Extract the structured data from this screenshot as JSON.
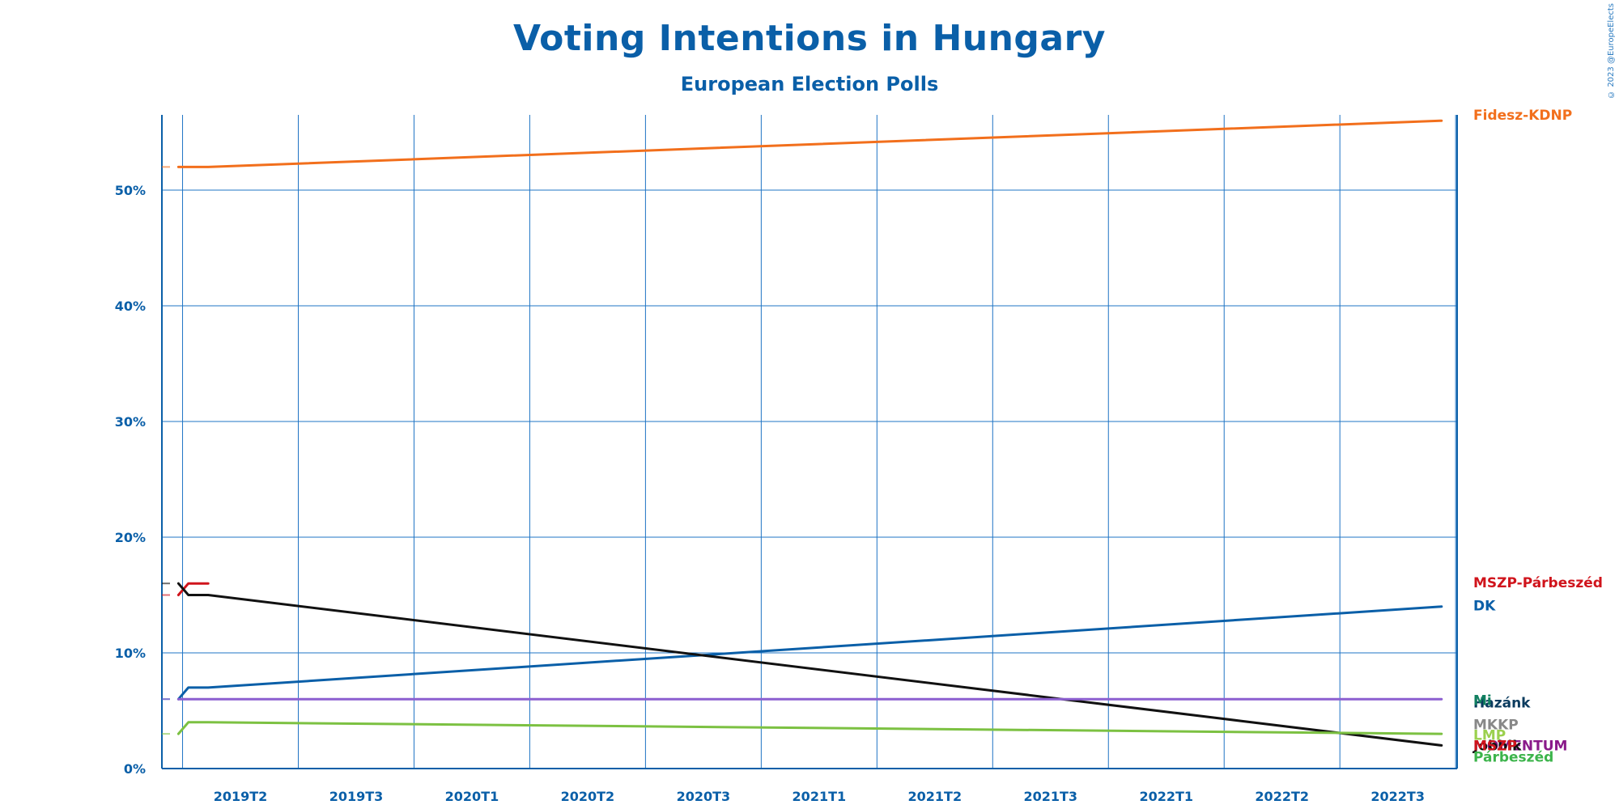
{
  "page": {
    "title": "Voting Intentions in Hungary",
    "subtitle": "European Election Polls",
    "copyright": "© 2023 @EuropeElects"
  },
  "chart_data": {
    "type": "line",
    "title": "Voting Intentions in Hungary",
    "subtitle": "European Election Polls",
    "xlabel": "",
    "ylabel": "",
    "x_categories": [
      "2019T2",
      "2019T3",
      "2020T1",
      "2020T2",
      "2020T3",
      "2021T1",
      "2021T2",
      "2021T3",
      "2022T1",
      "2022T2",
      "2022T3"
    ],
    "x_range": [
      2019.0,
      2022.917
    ],
    "yticks": [
      0,
      10,
      20,
      30,
      40,
      50
    ],
    "ytick_labels": [
      "0%",
      "10%",
      "20%",
      "30%",
      "40%",
      "50%"
    ],
    "ylim": [
      0,
      56.5
    ],
    "grid": true,
    "legend": "labels at right end of each line",
    "series": [
      {
        "name": "Fidesz-KDNP",
        "color": "#f26f1c",
        "points": [
          [
            2019.05,
            52
          ],
          [
            2019.14,
            52
          ],
          [
            2022.87,
            56
          ]
        ]
      },
      {
        "name": "MSZP-Párbeszéd",
        "color": "#d0141c",
        "points": [
          [
            2019.05,
            15
          ],
          [
            2019.08,
            16
          ],
          [
            2019.14,
            16
          ]
        ]
      },
      {
        "name": "DK",
        "color": "#0a5fa8",
        "points": [
          [
            2019.05,
            6
          ],
          [
            2019.08,
            7
          ],
          [
            2019.14,
            7
          ],
          [
            2022.87,
            14
          ]
        ]
      },
      {
        "name": "Jobbik",
        "color": "#111111",
        "points": [
          [
            2019.05,
            16
          ],
          [
            2019.08,
            15
          ],
          [
            2019.14,
            15
          ],
          [
            2022.87,
            2
          ]
        ]
      },
      {
        "name": "Mi Hazánk",
        "color": "#8c5fd0",
        "points": [
          [
            2019.05,
            6
          ],
          [
            2019.14,
            6
          ],
          [
            2022.87,
            6
          ]
        ]
      },
      {
        "name": "LMP",
        "color": "#7cc142",
        "points": [
          [
            2019.05,
            3
          ],
          [
            2019.08,
            4
          ],
          [
            2019.14,
            4
          ],
          [
            2022.87,
            3
          ]
        ]
      },
      {
        "name": "MKKP",
        "color": "#888888",
        "points": []
      },
      {
        "name": "Momentum",
        "color": "#8a1a8a",
        "points": []
      },
      {
        "name": "Párbeszéd",
        "color": "#3cb44b",
        "points": []
      }
    ],
    "end_labels": [
      {
        "text": "Fidesz-KDNP",
        "value": 56.5,
        "color": "#f26f1c"
      },
      {
        "text": "MSZP-Párbeszéd",
        "value": 16.1,
        "color": "#d0141c"
      },
      {
        "text": "DK",
        "value": 14.1,
        "color": "#0a5fa8"
      },
      {
        "text": "Hazánk",
        "value": 5.7,
        "color": "#0b3b5e"
      },
      {
        "text": "Mi",
        "value": 5.9,
        "color": "#118060"
      },
      {
        "text": "MKKP",
        "value": 3.8,
        "color": "#888888"
      },
      {
        "text": "LMP",
        "value": 2.9,
        "color": "#9bd04e"
      },
      {
        "text": "MOMENTUM",
        "value": 2.0,
        "color": "#8a1a8a"
      },
      {
        "text": "Jobbik",
        "value": 2.0,
        "color": "#111111"
      },
      {
        "text": "MSZP",
        "value": 2.0,
        "color": "#d0141c"
      },
      {
        "text": "Párbeszéd",
        "value": 1.0,
        "color": "#3cb44b"
      }
    ]
  }
}
